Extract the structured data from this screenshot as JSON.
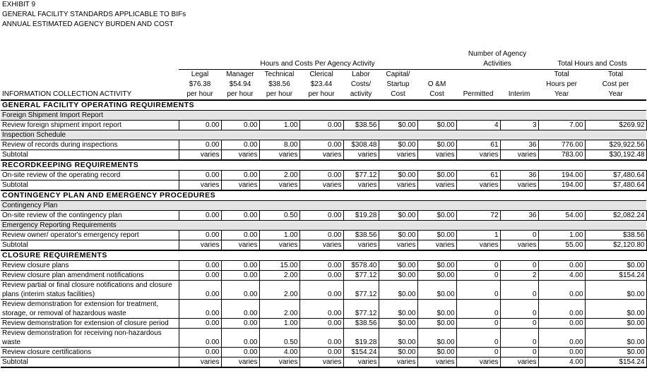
{
  "header": {
    "exhibit": "EXHIBIT 9",
    "title": "GENERAL FACILITY STANDARDS APPLICABLE TO BIFs",
    "subtitle": "ANNUAL ESTIMATED AGENCY BURDEN AND COST"
  },
  "table": {
    "groups": [
      "Hours and Costs Per Agency Activity",
      "Number of Agency\nActivities",
      "Total Hours and Costs"
    ],
    "columns": [
      "INFORMATION COLLECTION ACTIVITY",
      "Legal\n$76.38\nper hour",
      "Manager\n$54.94\nper hour",
      "Technical\n$38.56\nper hour",
      "Clerical\n$23.44\nper hour",
      "Labor\nCosts/\nactivity",
      "Capital/\nStartup\nCost",
      "O &M\nCost",
      "Permitted",
      "Interim",
      "Total\nHours per\nYear",
      "Total\nCost per\nYear"
    ],
    "sections": [
      {
        "title": "GENERAL FACILITY OPERATING REQUIREMENTS",
        "blocks": [
          {
            "title": "Foreign Shipment Import Report",
            "rows": [
              [
                "Review foreign shipment import report",
                "0.00",
                "0.00",
                "1.00",
                "0.00",
                "$38.56",
                "$0.00",
                "$0.00",
                "4",
                "3",
                "7.00",
                "$269.92"
              ]
            ]
          },
          {
            "title": "Inspection Schedule",
            "rows": [
              [
                "Review of records during inspections",
                "0.00",
                "0.00",
                "8.00",
                "0.00",
                "$308.48",
                "$0.00",
                "$0.00",
                "61",
                "36",
                "776.00",
                "$29,922.56"
              ]
            ]
          }
        ],
        "subtotal": [
          "Subtotal",
          "varies",
          "varies",
          "varies",
          "varies",
          "varies",
          "varies",
          "varies",
          "varies",
          "varies",
          "783.00",
          "$30,192.48"
        ]
      },
      {
        "title": "RECORDKEEPING REQUIREMENTS",
        "blocks": [
          {
            "rows": [
              [
                "On-site review of the operating record",
                "0.00",
                "0.00",
                "2.00",
                "0.00",
                "$77.12",
                "$0.00",
                "$0.00",
                "61",
                "36",
                "194.00",
                "$7,480.64"
              ]
            ]
          }
        ],
        "subtotal": [
          "Subtotal",
          "varies",
          "varies",
          "varies",
          "varies",
          "varies",
          "varies",
          "varies",
          "varies",
          "varies",
          "194.00",
          "$7,480.64"
        ]
      },
      {
        "title": "CONTINGENCY PLAN AND EMERGENCY PROCEDURES",
        "blocks": [
          {
            "title": "Contingency Plan",
            "rows": [
              [
                "On-site review of the contingency plan",
                "0.00",
                "0.00",
                "0.50",
                "0.00",
                "$19.28",
                "$0.00",
                "$0.00",
                "72",
                "36",
                "54.00",
                "$2,082.24"
              ]
            ]
          },
          {
            "title": "Emergency Reporting Requirements",
            "rows": [
              [
                "Review owner/ operator's emergency report",
                "0.00",
                "0.00",
                "1.00",
                "0.00",
                "$38.56",
                "$0.00",
                "$0.00",
                "1",
                "0",
                "1.00",
                "$38.56"
              ]
            ]
          }
        ],
        "subtotal": [
          "Subtotal",
          "varies",
          "varies",
          "varies",
          "varies",
          "varies",
          "varies",
          "varies",
          "varies",
          "varies",
          "55.00",
          "$2,120.80"
        ]
      },
      {
        "title": "CLOSURE REQUIREMENTS",
        "blocks": [
          {
            "rows": [
              [
                "Review closure plans",
                "0.00",
                "0.00",
                "15.00",
                "0.00",
                "$578.40",
                "$0.00",
                "$0.00",
                "0",
                "0",
                "0.00",
                "$0.00"
              ],
              [
                "Review closure plan amendment notifications",
                "0.00",
                "0.00",
                "2.00",
                "0.00",
                "$77.12",
                "$0.00",
                "$0.00",
                "0",
                "2",
                "4.00",
                "$154.24"
              ],
              [
                "Review partial or final closure notifications and closure plans (interim status facilities)",
                "0.00",
                "0.00",
                "2.00",
                "0.00",
                "$77.12",
                "$0.00",
                "$0.00",
                "0",
                "0",
                "0.00",
                "$0.00"
              ],
              [
                "Review demonstration for extension for treatment, storage, or removal of hazardous waste",
                "0.00",
                "0.00",
                "2.00",
                "0.00",
                "$77.12",
                "$0.00",
                "$0.00",
                "0",
                "0",
                "0.00",
                "$0.00"
              ],
              [
                "Review demonstration for extension of closure period",
                "0.00",
                "0.00",
                "1.00",
                "0.00",
                "$38.56",
                "$0.00",
                "$0.00",
                "0",
                "0",
                "0.00",
                "$0.00"
              ],
              [
                "Review demonstration for receiving non-hazardous waste",
                "0.00",
                "0.00",
                "0.50",
                "0.00",
                "$19.28",
                "$0.00",
                "$0.00",
                "0",
                "0",
                "0.00",
                "$0.00"
              ],
              [
                "Review closure certifications",
                "0.00",
                "0.00",
                "4.00",
                "0.00",
                "$154.24",
                "$0.00",
                "$0.00",
                "0",
                "0",
                "0.00",
                "$0.00"
              ]
            ]
          }
        ],
        "subtotal": [
          "Subtotal",
          "varies",
          "varies",
          "varies",
          "varies",
          "varies",
          "varies",
          "varies",
          "varies",
          "varies",
          "4.00",
          "$154.24"
        ]
      }
    ]
  }
}
